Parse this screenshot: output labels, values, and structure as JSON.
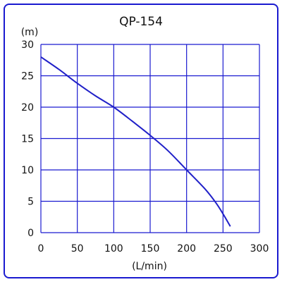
{
  "chart_data": {
    "type": "line",
    "title": "QP-154",
    "ylabel": "(m)",
    "xlabel": "(L/min)",
    "xlim": [
      0,
      300
    ],
    "ylim": [
      0,
      30
    ],
    "x_ticks": [
      "0",
      "50",
      "100",
      "150",
      "200",
      "250",
      "300"
    ],
    "y_ticks": [
      "0",
      "5",
      "10",
      "15",
      "20",
      "25",
      "30"
    ],
    "grid": true,
    "legend": "none",
    "colors": {
      "frame": "#1a1ad0",
      "grid": "#1a1ad0",
      "line": "#2020c8"
    },
    "series": [
      {
        "x": [
          0,
          25,
          50,
          75,
          100,
          125,
          150,
          175,
          200,
          225,
          240,
          250,
          260
        ],
        "values": [
          28,
          26,
          23.8,
          21.8,
          20,
          17.8,
          15.5,
          13,
          10,
          7,
          4.8,
          3,
          1
        ]
      }
    ]
  }
}
